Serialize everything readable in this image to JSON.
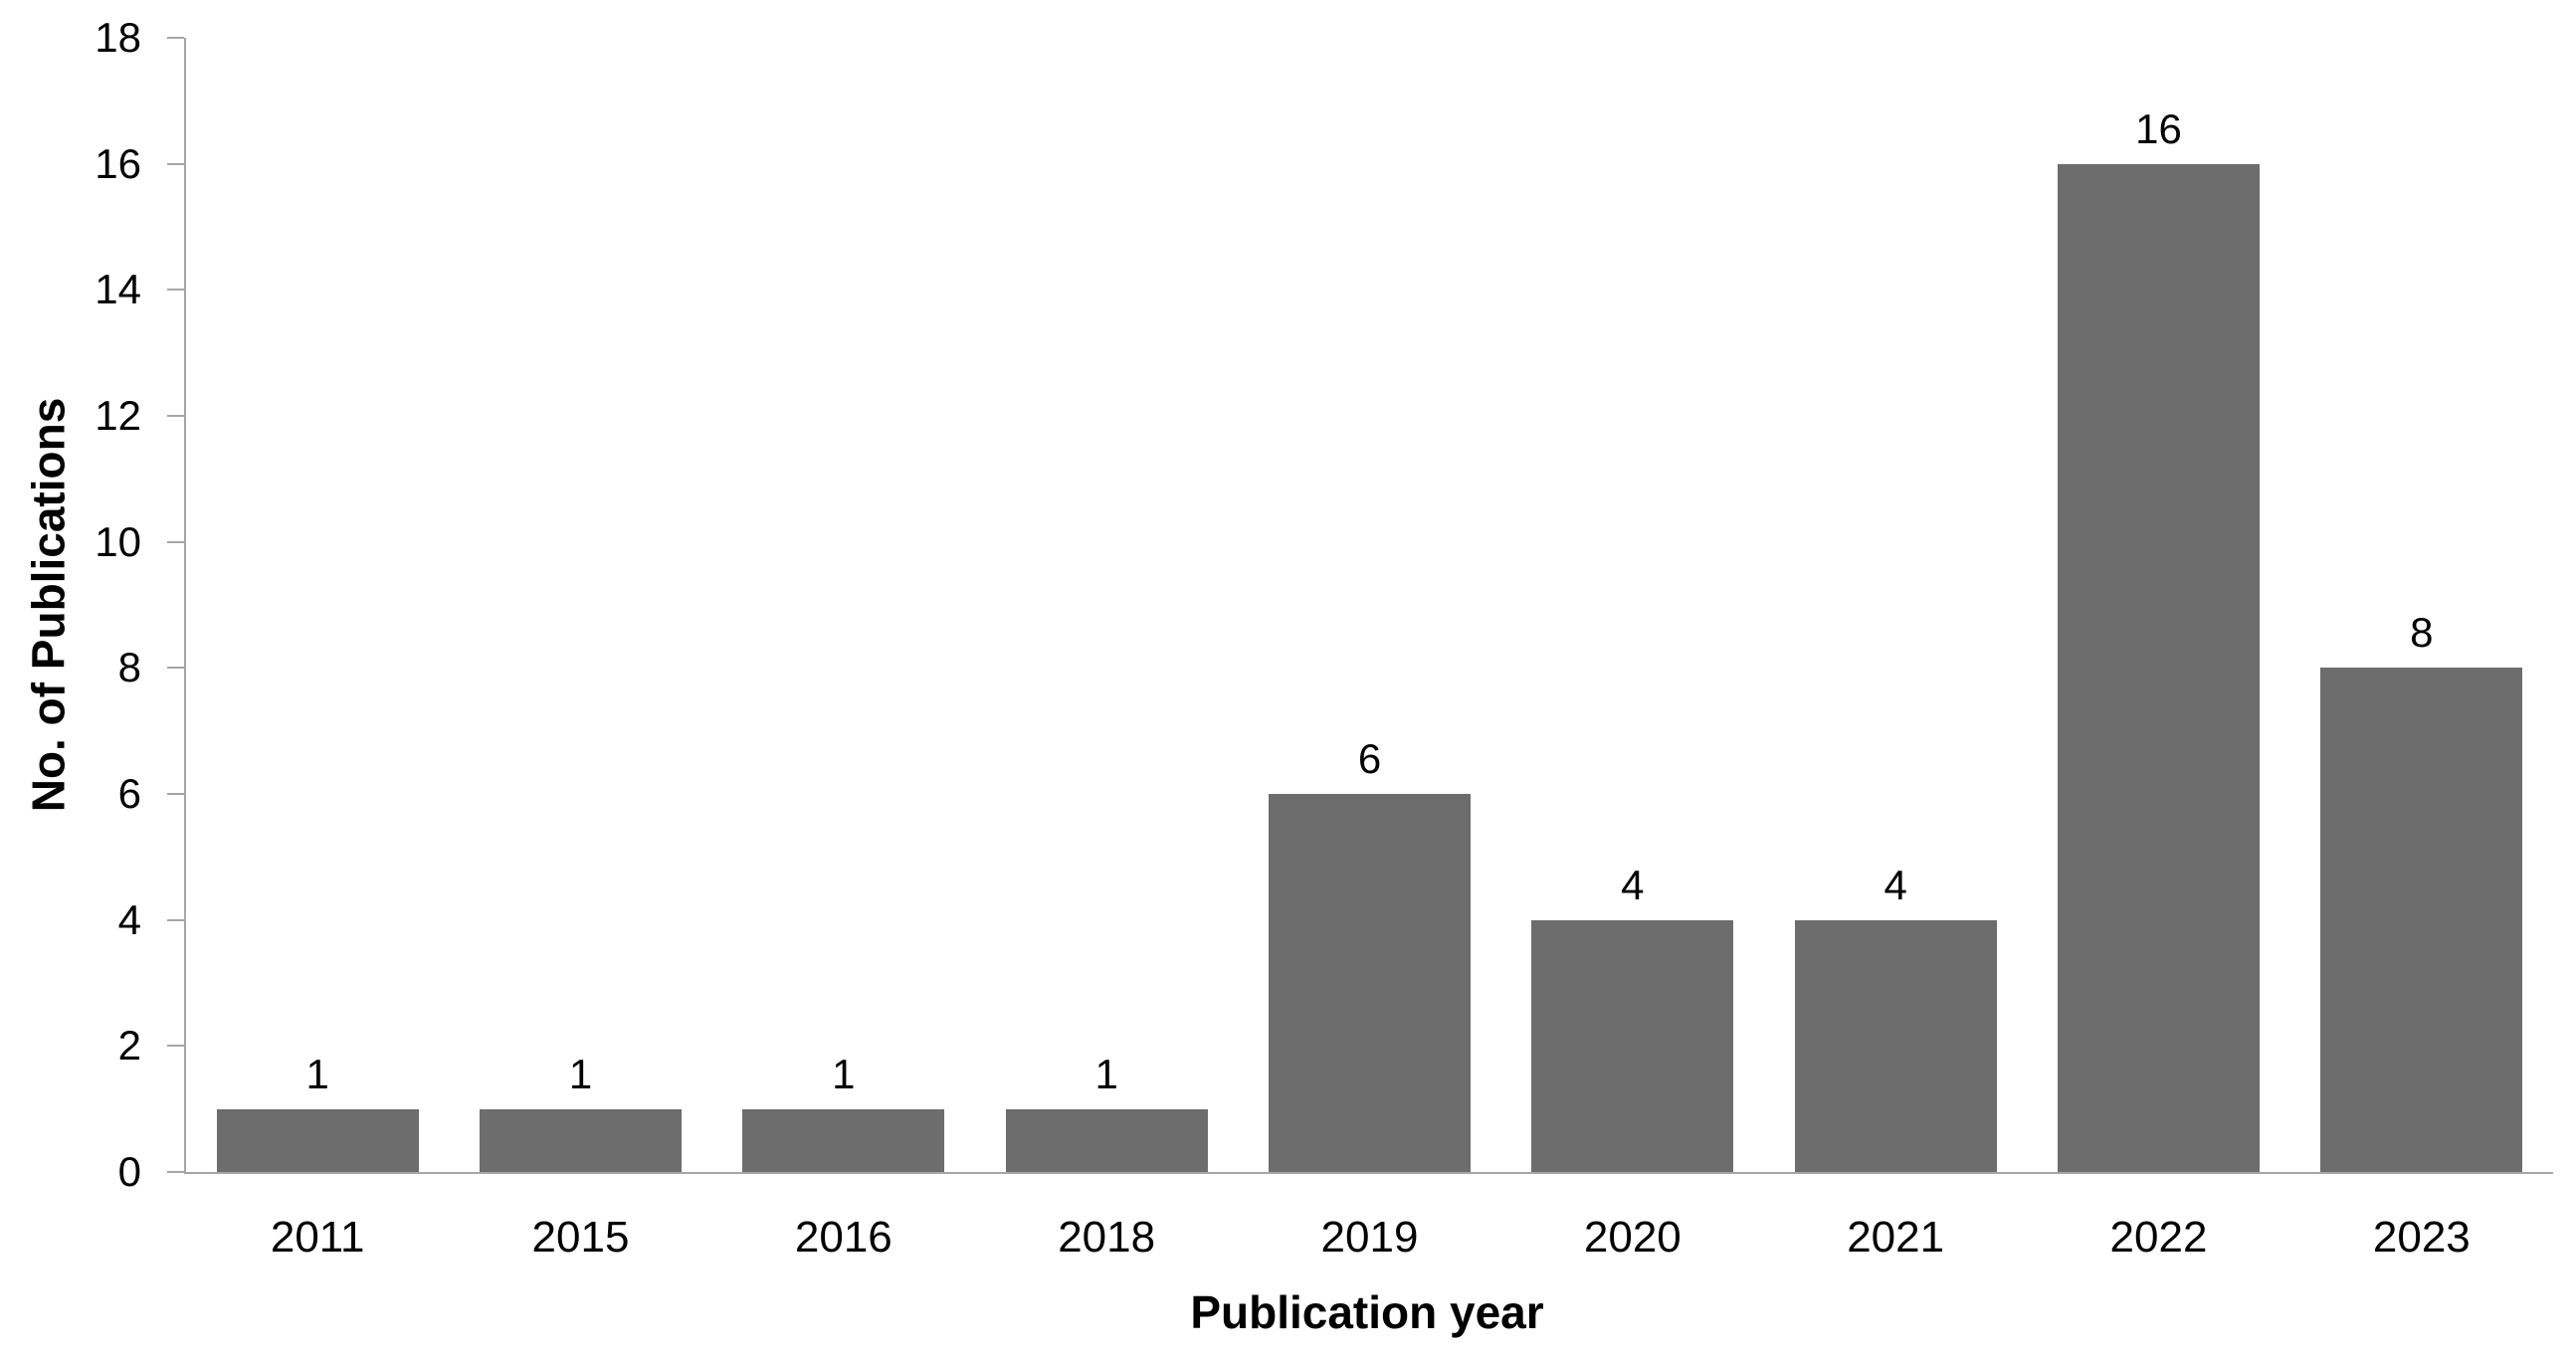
{
  "chart_data": {
    "type": "bar",
    "categories": [
      "2011",
      "2015",
      "2016",
      "2018",
      "2019",
      "2020",
      "2021",
      "2022",
      "2023"
    ],
    "values": [
      1,
      1,
      1,
      1,
      6,
      4,
      4,
      16,
      8
    ],
    "data_labels": [
      "1",
      "1",
      "1",
      "1",
      "6",
      "4",
      "4",
      "16",
      "8"
    ],
    "ytick_labels": [
      "0",
      "2",
      "4",
      "6",
      "8",
      "10",
      "12",
      "14",
      "16",
      "18"
    ],
    "title": "",
    "xlabel": "Publication year",
    "ylabel": "No. of Publications",
    "ylim": [
      0,
      18
    ],
    "ytick_step": 2,
    "grid": "off",
    "legend_position": "none",
    "bar_color": "#6d6d6d",
    "axis_color": "#a6a6a6",
    "text_color": "#000000",
    "background_color": "#ffffff"
  }
}
